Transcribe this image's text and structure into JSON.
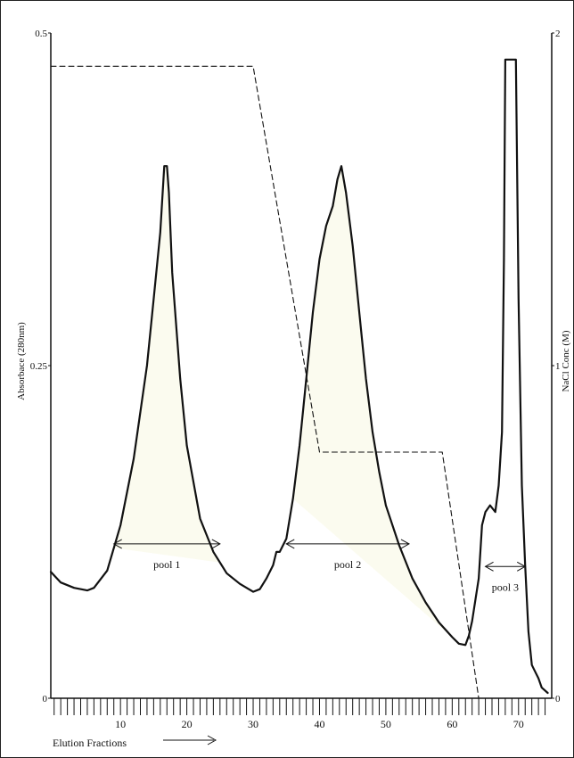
{
  "chart_data": {
    "type": "line",
    "xlabel": "Elution Fractions",
    "ylabel": "Absorbace (280nm)",
    "y2label": "NaCl Conc (M)",
    "xlim": [
      -0.5,
      75
    ],
    "ylim": [
      0,
      0.5
    ],
    "y2lim": [
      0,
      2
    ],
    "x_ticks": [
      10,
      20,
      30,
      40,
      50,
      60,
      70
    ],
    "x_minor_ticks": [
      0,
      1,
      2,
      3,
      4,
      5,
      6,
      7,
      8,
      9,
      10,
      11,
      12,
      13,
      14,
      15,
      16,
      17,
      18,
      19,
      20,
      21,
      22,
      23,
      24,
      25,
      26,
      27,
      28,
      29,
      30,
      31,
      32,
      33,
      34,
      35,
      36,
      37,
      38,
      39,
      40,
      41,
      42,
      43,
      44,
      45,
      46,
      47,
      48,
      49,
      50,
      51,
      52,
      53,
      54,
      55,
      56,
      57,
      58,
      59,
      60,
      61,
      62,
      63,
      64,
      65,
      66,
      67,
      68,
      69,
      70,
      71,
      72,
      73,
      74
    ],
    "y_ticks": [
      {
        "value": 0,
        "label": "0"
      },
      {
        "value": 0.25,
        "label": "0.25"
      },
      {
        "value": 0.5,
        "label": "0.5"
      }
    ],
    "y2_ticks": [
      {
        "value": 0,
        "label": "0"
      },
      {
        "value": 1,
        "label": "1"
      },
      {
        "value": 2,
        "label": "2"
      }
    ],
    "grid": false,
    "series": [
      {
        "axis": "left",
        "style": "solid",
        "x": [
          -0.5,
          1,
          3,
          5,
          6,
          8,
          10,
          12,
          14,
          15,
          16,
          16.6,
          17,
          17.3,
          17.8,
          19,
          20,
          22,
          24,
          26,
          28,
          30,
          31,
          32,
          33,
          33.5,
          34,
          35,
          36,
          37,
          38,
          39,
          40,
          41,
          42,
          42.7,
          43.3,
          44,
          45,
          46,
          47,
          48,
          49,
          50,
          52,
          54,
          56,
          58,
          60,
          61,
          62,
          62.5,
          63,
          64,
          64.5,
          65,
          65.7,
          66.5,
          67,
          67.5,
          67.8,
          68,
          69,
          69.6,
          70,
          70.5,
          71,
          71.5,
          72,
          72.5,
          73,
          73.5,
          74.4
        ],
        "y": [
          0.095,
          0.087,
          0.083,
          0.081,
          0.083,
          0.096,
          0.13,
          0.18,
          0.25,
          0.3,
          0.35,
          0.4,
          0.4,
          0.38,
          0.32,
          0.24,
          0.19,
          0.135,
          0.11,
          0.094,
          0.086,
          0.08,
          0.082,
          0.09,
          0.1,
          0.11,
          0.11,
          0.12,
          0.15,
          0.19,
          0.24,
          0.29,
          0.33,
          0.355,
          0.37,
          0.39,
          0.4,
          0.38,
          0.34,
          0.29,
          0.24,
          0.2,
          0.17,
          0.145,
          0.115,
          0.09,
          0.072,
          0.057,
          0.046,
          0.041,
          0.04,
          0.047,
          0.058,
          0.09,
          0.13,
          0.14,
          0.145,
          0.14,
          0.16,
          0.2,
          0.33,
          0.48,
          0.48,
          0.48,
          0.3,
          0.16,
          0.1,
          0.05,
          0.025,
          0.02,
          0.015,
          0.008,
          0.004
        ]
      },
      {
        "axis": "right",
        "style": "dashed",
        "x": [
          -0.5,
          30,
          40,
          58.5,
          64,
          74.4
        ],
        "y": [
          1.9,
          1.9,
          0.74,
          0.74,
          0.0,
          0.0
        ]
      }
    ],
    "shaded_pools": [
      {
        "from": 9,
        "to": 25
      },
      {
        "from": 36,
        "to": 60
      }
    ],
    "annotations": [
      {
        "text": "pool 1",
        "from": 9,
        "to": 25,
        "y": 0.116
      },
      {
        "text": "pool 2",
        "from": 35,
        "to": 53.5,
        "y": 0.116
      },
      {
        "text": "pool 3",
        "from": 65,
        "to": 71,
        "y": 0.099
      }
    ]
  },
  "x_arrow_label": "→"
}
